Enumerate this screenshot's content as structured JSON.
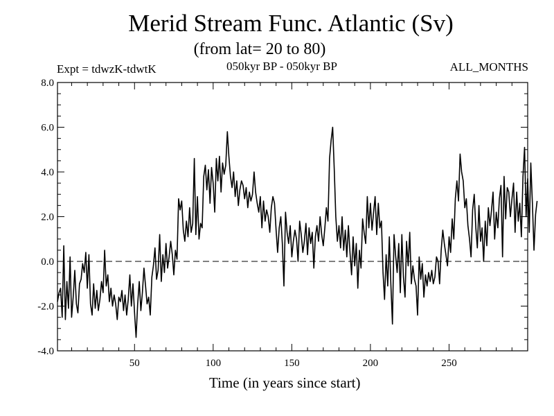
{
  "chart_data": {
    "type": "line",
    "title": "Merid Stream Func. Atlantic (Sv)",
    "subtitle": "(from lat= 20 to 80)",
    "experiment": "Expt = tdwzK-tdwtK",
    "period": "050kyr BP - 050kyr BP",
    "months": "ALL_MONTHS",
    "xlabel": "Time (in years since start)",
    "ylabel": "",
    "xlim": [
      1,
      300
    ],
    "ylim": [
      -4.0,
      8.0
    ],
    "x_ticks": [
      50,
      100,
      150,
      200,
      250
    ],
    "y_ticks": [
      -4.0,
      -2.0,
      0.0,
      2.0,
      4.0,
      6.0,
      8.0
    ],
    "y_tick_labels": [
      "-4.0",
      "-2.0",
      "0.0",
      "2.0",
      "4.0",
      "6.0",
      "8.0"
    ],
    "reference_line": 0.0,
    "series": [
      {
        "name": "Merid Stream Func. Atlantic",
        "x_start": 1,
        "x_step": 1,
        "values": [
          -1.8,
          -1.4,
          -1.2,
          -2.5,
          0.7,
          -2.6,
          -0.9,
          -2.1,
          0.2,
          -2.5,
          -1.6,
          -0.4,
          -1.9,
          -2.3,
          -1.0,
          -0.8,
          -0.1,
          -0.5,
          0.4,
          -1.2,
          0.3,
          -1.9,
          -2.4,
          -1.0,
          -2.1,
          -1.3,
          -2.2,
          -1.7,
          -0.9,
          -1.4,
          0.5,
          -1.1,
          -0.6,
          -1.8,
          -1.2,
          -2.0,
          -1.5,
          -1.9,
          -2.6,
          -1.6,
          -1.8,
          -1.3,
          -2.2,
          -1.5,
          -2.4,
          -1.7,
          -0.6,
          -2.0,
          -1.0,
          -2.3,
          -3.4,
          -1.9,
          -0.9,
          -2.2,
          -1.4,
          -0.3,
          -1.1,
          -1.9,
          -1.6,
          -2.4,
          -0.7,
          -0.2,
          0.6,
          -0.8,
          -0.4,
          1.2,
          -0.9,
          0.3,
          -0.5,
          0.8,
          -0.3,
          0.2,
          0.9,
          0.3,
          -0.6,
          0.5,
          0.1,
          2.8,
          2.3,
          2.7,
          1.4,
          0.9,
          1.8,
          1.1,
          2.4,
          1.3,
          1.7,
          4.6,
          1.2,
          2.9,
          1.0,
          1.7,
          1.5,
          3.8,
          4.3,
          3.2,
          4.1,
          2.6,
          4.2,
          3.5,
          2.2,
          4.6,
          3.6,
          4.7,
          3.1,
          4.4,
          3.9,
          4.3,
          5.8,
          4.7,
          3.8,
          3.3,
          4.0,
          2.9,
          3.6,
          2.5,
          3.2,
          3.6,
          3.4,
          2.8,
          3.3,
          2.4,
          3.1,
          2.7,
          3.0,
          4.0,
          3.1,
          2.6,
          2.2,
          2.9,
          1.5,
          2.7,
          1.8,
          2.3,
          2.0,
          1.3,
          2.4,
          2.9,
          2.6,
          1.4,
          0.4,
          1.5,
          2.0,
          0.8,
          -1.1,
          2.2,
          1.3,
          0.8,
          1.6,
          0.2,
          0.9,
          1.4,
          1.0,
          0.0,
          1.8,
          1.2,
          0.4,
          0.9,
          1.7,
          0.3,
          1.5,
          0.8,
          1.3,
          -0.3,
          1.1,
          1.6,
          0.9,
          2.0,
          1.2,
          0.7,
          1.5,
          2.4,
          1.8,
          4.6,
          5.4,
          6.0,
          4.1,
          2.0,
          0.9,
          1.6,
          0.6,
          2.0,
          0.5,
          1.4,
          0.2,
          1.6,
          0.4,
          -0.6,
          1.1,
          -0.2,
          0.8,
          -1.2,
          0.5,
          -0.3,
          1.9,
          1.3,
          0.8,
          2.9,
          1.5,
          2.6,
          1.4,
          2.2,
          2.9,
          1.2,
          2.6,
          1.5,
          1.8,
          -0.5,
          -1.7,
          0.3,
          -1.1,
          1.1,
          -1.0,
          -2.8,
          1.2,
          0.3,
          -0.5,
          0.8,
          -1.4,
          1.2,
          -0.7,
          -1.6,
          0.9,
          -0.2,
          1.3,
          -1.0,
          -0.2,
          -0.8,
          -1.1,
          -2.4,
          0.2,
          -0.8,
          -0.1,
          -1.6,
          -0.6,
          -1.1,
          -0.5,
          -0.9,
          -0.4,
          -1.0,
          -0.7,
          0.2,
          0.0,
          -1.0,
          0.5,
          1.4,
          0.8,
          0.3,
          -0.2,
          1.1,
          0.4,
          1.9,
          1.0,
          2.8,
          3.6,
          2.7,
          4.8,
          4.0,
          3.6,
          2.4,
          2.8,
          1.6,
          1.0,
          0.2,
          2.3,
          3.0,
          1.5,
          0.6,
          2.5,
          0.9,
          1.5,
          0.0,
          1.8,
          0.7,
          2.4,
          1.6,
          2.3,
          3.1,
          1.0,
          2.2,
          1.5,
          2.8,
          3.4,
          0.2,
          3.8,
          1.9,
          3.3,
          3.1,
          2.0,
          2.8,
          3.5,
          1.3,
          3.1,
          1.8,
          2.6,
          1.1,
          3.8,
          5.1,
          2.0,
          3.7,
          1.3,
          4.4,
          2.6,
          0.5,
          2.1,
          2.7
        ]
      }
    ]
  }
}
